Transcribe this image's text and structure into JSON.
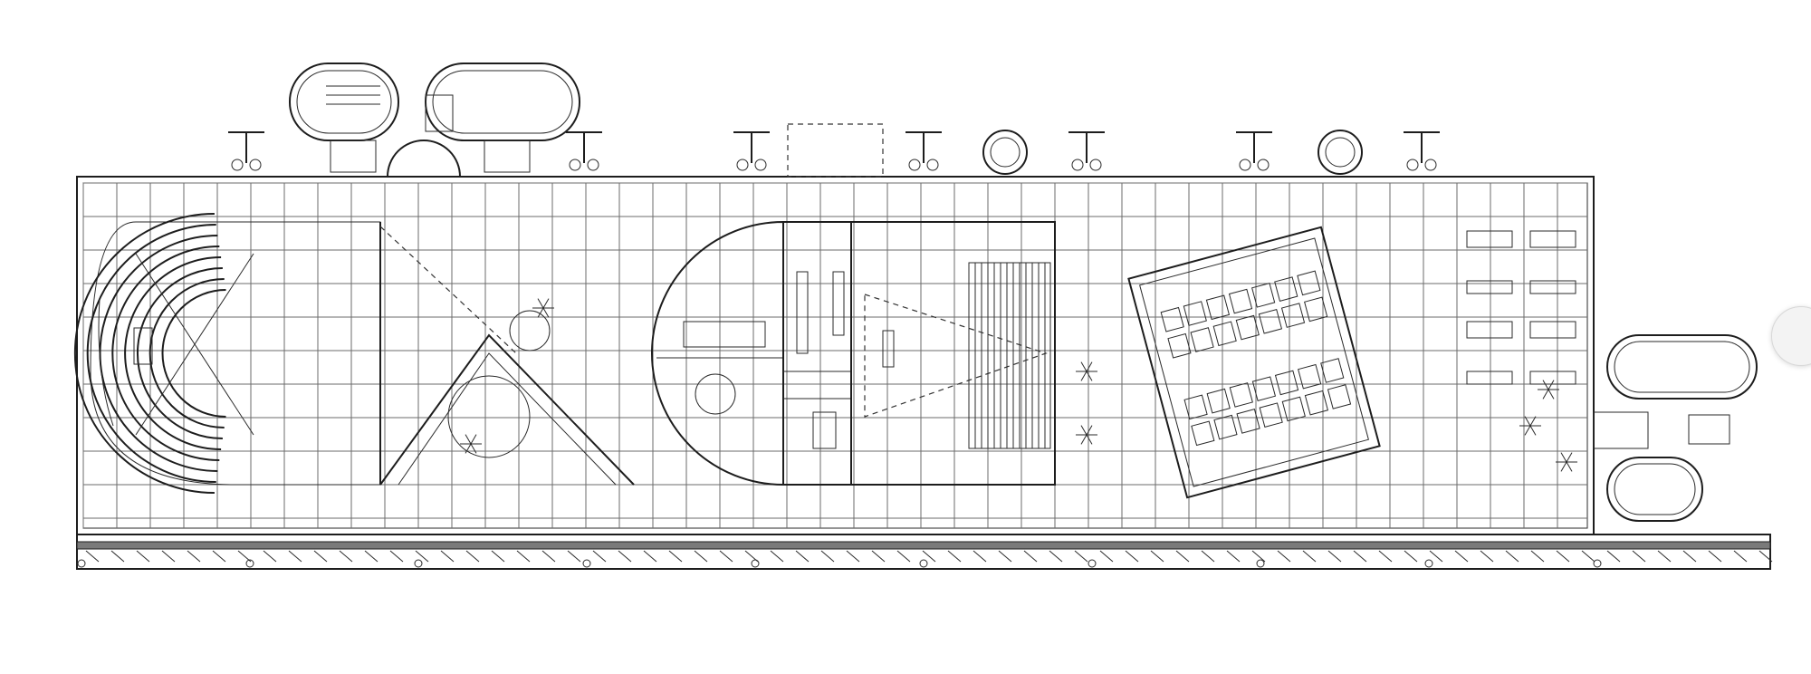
{
  "diagram": {
    "type": "architectural-floor-plan",
    "grid": true,
    "colors": {
      "line": "#1d1d1d",
      "grid": "#6b6b6b",
      "background": "#ffffff"
    }
  },
  "controls": {
    "next_icon": "chevron-right-icon"
  }
}
